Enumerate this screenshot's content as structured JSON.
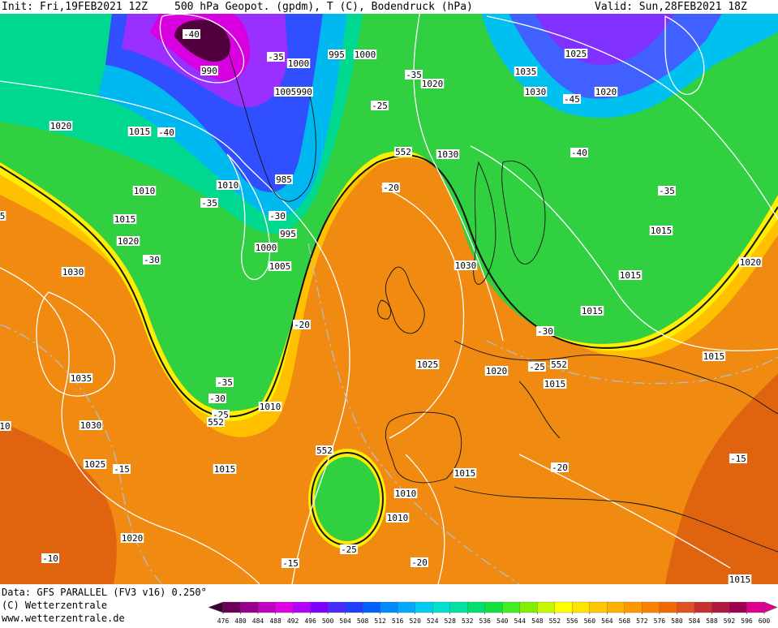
{
  "header": {
    "init": "Init: Fri,19FEB2021 12Z",
    "title": "500 hPa Geopot. (gpdm), T (C), Bodendruck (hPa)",
    "valid": "Valid: Sun,28FEB2021 18Z"
  },
  "footer": {
    "data": "Data: GFS PARALLEL (FV3 v16) 0.250°",
    "copyright": "(C) Wetterzentrale",
    "url": "www.wetterzentrale.de"
  },
  "colorbar": {
    "values": [
      476,
      480,
      484,
      488,
      492,
      496,
      500,
      504,
      508,
      512,
      516,
      520,
      524,
      528,
      532,
      536,
      540,
      544,
      548,
      552,
      556,
      560,
      564,
      568,
      572,
      576,
      580,
      584,
      588,
      592,
      596,
      600
    ],
    "colors": [
      "#3c0030",
      "#6a005a",
      "#96008c",
      "#c000c0",
      "#e000e8",
      "#b400ff",
      "#8000ff",
      "#4a2cff",
      "#2040ff",
      "#0060ff",
      "#0088ff",
      "#00aaff",
      "#00ccf0",
      "#00e0d0",
      "#00e0a0",
      "#00e070",
      "#10e040",
      "#40f020",
      "#80f000",
      "#c8f800",
      "#ffff00",
      "#ffe400",
      "#ffc800",
      "#ffb000",
      "#ff9800",
      "#ff8000",
      "#f06800",
      "#e05020",
      "#c83030",
      "#b01840",
      "#a00050",
      "#e00090"
    ]
  },
  "map_labels": [
    "-40",
    "990",
    "-35",
    "1000",
    "995",
    "1000",
    "-35",
    "1020",
    "1005",
    "990",
    "-25",
    "1020",
    "1015",
    "-40",
    "1035",
    "1025",
    "1030",
    "-45",
    "1020",
    "552",
    "1030",
    "-40",
    "1010",
    "1010",
    "985",
    "-20",
    "-35",
    "-30",
    "-35",
    "1015",
    "995",
    "1020",
    "1000",
    "1005",
    "-30",
    "1015",
    "1020",
    "1030",
    "1015",
    "1030",
    "1015",
    "-20",
    "-30",
    "1025",
    "1020",
    "-25",
    "552",
    "1015",
    "1015",
    "1035",
    "-35",
    "-30",
    "1010",
    "-25",
    "552",
    "552",
    "1015",
    "-20",
    "-15",
    "1030",
    "1025",
    "-15",
    "1015",
    "1010",
    "1010",
    "1020",
    "-25",
    "-20",
    "-15",
    "-10",
    "1015",
    "10",
    "5"
  ]
}
